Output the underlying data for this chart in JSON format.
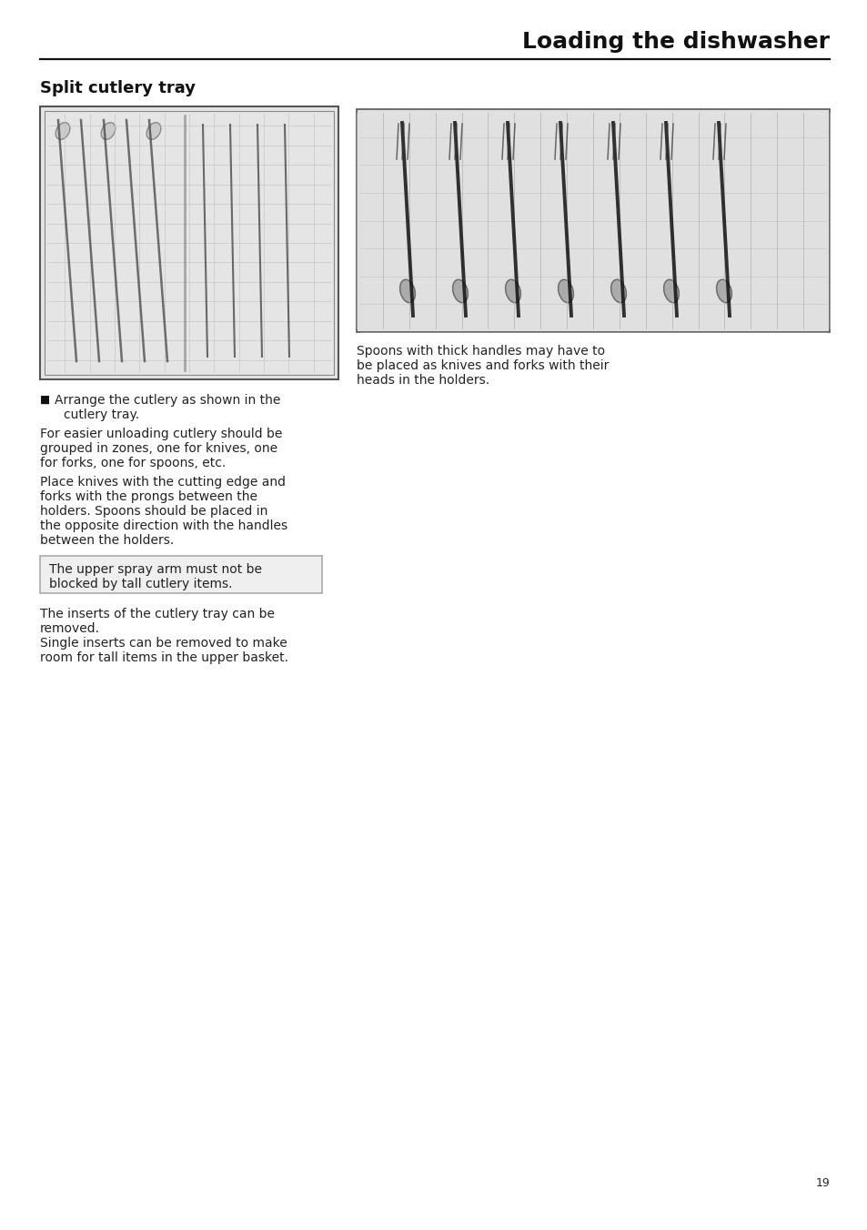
{
  "page_title": "Loading the dishwasher",
  "section_title": "Split cutlery tray",
  "background_color": "#ffffff",
  "title_fontsize": 18,
  "section_fontsize": 13,
  "body_fontsize": 10,
  "small_fontsize": 9,
  "page_number": "19",
  "bullet_text_line1": "Arrange the cutlery as shown in the",
  "bullet_text_line2": "cutlery tray.",
  "para1_line1": "For easier unloading cutlery should be",
  "para1_line2": "grouped in zones, one for knives, one",
  "para1_line3": "for forks, one for spoons, etc.",
  "para2_line1": "Place knives with the cutting edge and",
  "para2_line2": "forks with the prongs between the",
  "para2_line3": "holders. Spoons should be placed in",
  "para2_line4": "the opposite direction with the handles",
  "para2_line5": "between the holders.",
  "warn_line1": "The upper spray arm must not be",
  "warn_line2": "blocked by tall cutlery items.",
  "para3_line1": "The inserts of the cutlery tray can be",
  "para3_line2": "removed.",
  "para3_line3": "Single inserts can be removed to make",
  "para3_line4": "room for tall items in the upper basket.",
  "rcap_line1": "Spoons with thick handles may have to",
  "rcap_line2": "be placed as knives and forks with their",
  "rcap_line3": "heads in the holders.",
  "img_left_bg": "#e8e8e8",
  "img_right_bg": "#d8d8d8",
  "warn_bg": "#efefef",
  "warn_border": "#aaaaaa",
  "body_color": "#222222",
  "title_color": "#111111",
  "rule_color": "#111111"
}
